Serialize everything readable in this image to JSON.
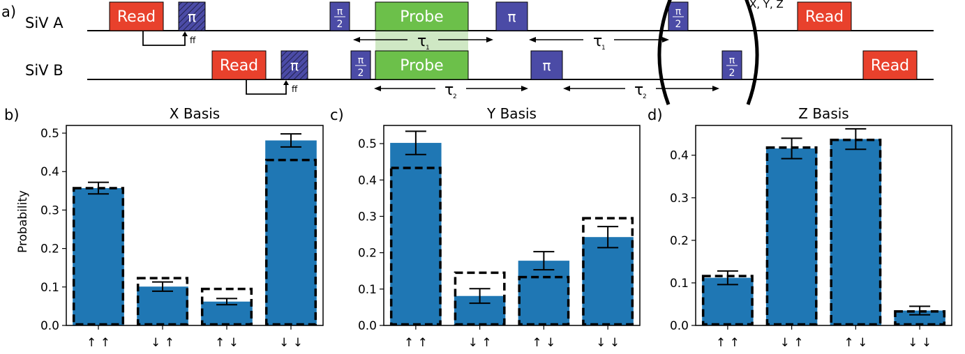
{
  "panel_labels": [
    "a)",
    "b)",
    "c)",
    "d)"
  ],
  "sequence": {
    "rows": [
      "SiV A",
      "SiV B"
    ],
    "read_label": "Read",
    "pi_label": "π",
    "half_pi_num": "π",
    "half_pi_den": "2",
    "probe_label": "Probe",
    "ff_label": "ff",
    "tau_symbol": "τ",
    "tau1_sub": "1",
    "tau2_sub": "2",
    "basis_label": "X, Y, Z",
    "colors": {
      "read": "#e8412c",
      "pi": "#4b4ba6",
      "probe": "#6cc04a",
      "probe_shade": "#cfe8c4"
    }
  },
  "chart_data": [
    {
      "type": "bar",
      "title": "X Basis",
      "ylabel": "Probability",
      "categories": [
        "↑ ↑",
        "↓ ↑",
        "↑ ↓",
        "↓ ↓"
      ],
      "values": [
        0.357,
        0.101,
        0.062,
        0.481
      ],
      "errors": [
        0.015,
        0.012,
        0.008,
        0.017
      ],
      "ideal": [
        0.357,
        0.123,
        0.095,
        0.43
      ],
      "ylim": [
        0,
        0.52
      ],
      "yticks": [
        "0.0",
        "0.1",
        "0.2",
        "0.3",
        "0.4",
        "0.5"
      ],
      "bar_color": "#1f77b4"
    },
    {
      "type": "bar",
      "title": "Y Basis",
      "ylabel": "",
      "categories": [
        "↑ ↑",
        "↓ ↑",
        "↑ ↓",
        "↓ ↓"
      ],
      "values": [
        0.502,
        0.081,
        0.178,
        0.243
      ],
      "errors": [
        0.032,
        0.02,
        0.025,
        0.029
      ],
      "ideal": [
        0.433,
        0.145,
        0.133,
        0.295
      ],
      "ylim": [
        0,
        0.55
      ],
      "yticks": [
        "0.0",
        "0.1",
        "0.2",
        "0.3",
        "0.4",
        "0.5"
      ],
      "bar_color": "#1f77b4"
    },
    {
      "type": "bar",
      "title": "Z Basis",
      "ylabel": "",
      "categories": [
        "↑ ↑",
        "↓ ↑",
        "↑ ↓",
        "↓ ↓"
      ],
      "values": [
        0.112,
        0.416,
        0.438,
        0.035
      ],
      "errors": [
        0.016,
        0.024,
        0.024,
        0.01
      ],
      "ideal": [
        0.116,
        0.418,
        0.436,
        0.033
      ],
      "ylim": [
        0,
        0.47
      ],
      "yticks": [
        "0.0",
        "0.1",
        "0.2",
        "0.3",
        "0.4"
      ],
      "bar_color": "#1f77b4"
    }
  ]
}
